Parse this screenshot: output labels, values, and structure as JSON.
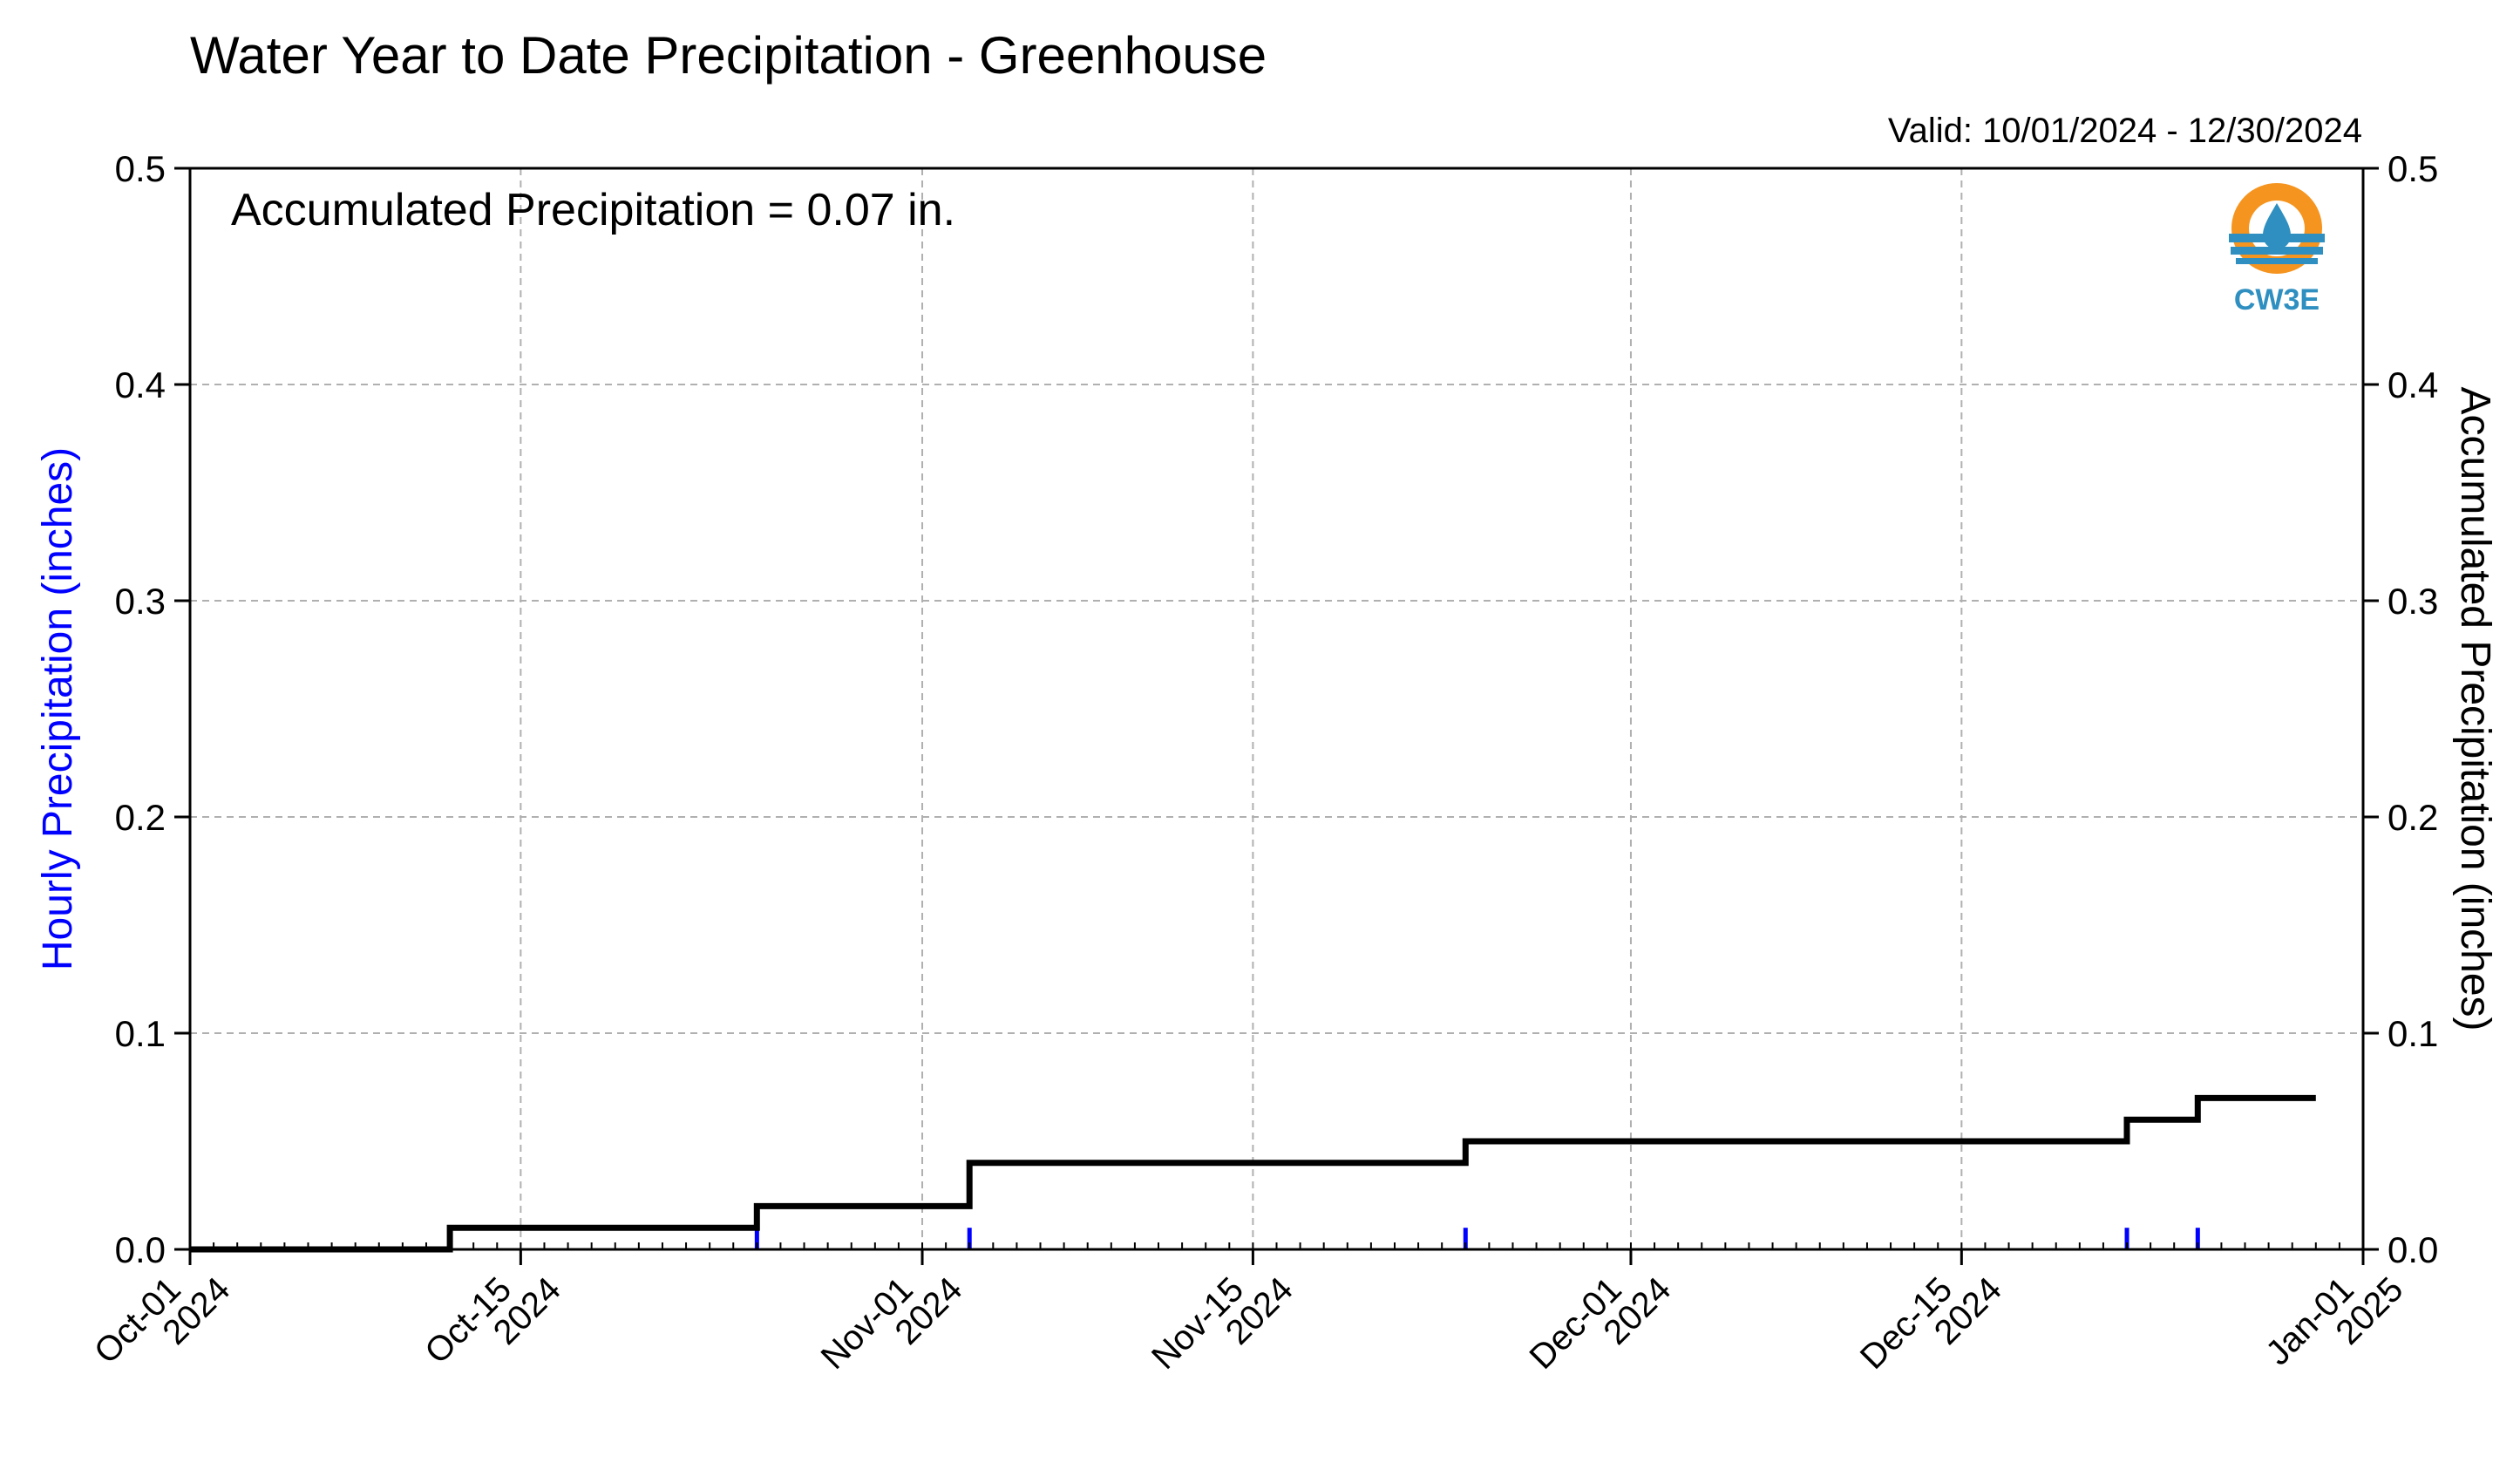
{
  "chart_data": {
    "type": "line",
    "title": "Water Year to Date Precipitation - Greenhouse",
    "valid_text": "Valid: 10/01/2024 - 12/30/2024",
    "annotation": "Accumulated Precipitation = 0.07 in.",
    "ylabel_left": "Hourly Precipitation (inches)",
    "ylabel_right": "Accumulated Precipitation (inches)",
    "ylim": [
      0,
      0.5
    ],
    "yticks": [
      0.0,
      0.1,
      0.2,
      0.3,
      0.4,
      0.5
    ],
    "ytick_labels": [
      "0.0",
      "0.1",
      "0.2",
      "0.3",
      "0.4",
      "0.5"
    ],
    "xlim": [
      "2024-10-01",
      "2025-01-01"
    ],
    "xticks": [
      {
        "date": "2024-10-01",
        "line1": "Oct-01",
        "line2": "2024"
      },
      {
        "date": "2024-10-15",
        "line1": "Oct-15",
        "line2": "2024"
      },
      {
        "date": "2024-11-01",
        "line1": "Nov-01",
        "line2": "2024"
      },
      {
        "date": "2024-11-15",
        "line1": "Nov-15",
        "line2": "2024"
      },
      {
        "date": "2024-12-01",
        "line1": "Dec-01",
        "line2": "2024"
      },
      {
        "date": "2024-12-15",
        "line1": "Dec-15",
        "line2": "2024"
      },
      {
        "date": "2025-01-01",
        "line1": "Jan-01",
        "line2": "2025"
      }
    ],
    "grid": true,
    "series": [
      {
        "name": "",
        "kind": "step",
        "color": "#000000",
        "points": [
          [
            "2024-10-01",
            0.0
          ],
          [
            "2024-10-12",
            0.0
          ],
          [
            "2024-10-12",
            0.01
          ],
          [
            "2024-10-25",
            0.01
          ],
          [
            "2024-10-25",
            0.02
          ],
          [
            "2024-11-03",
            0.02
          ],
          [
            "2024-11-03",
            0.04
          ],
          [
            "2024-11-24",
            0.04
          ],
          [
            "2024-11-24",
            0.05
          ],
          [
            "2024-12-22",
            0.05
          ],
          [
            "2024-12-22",
            0.06
          ],
          [
            "2024-12-25",
            0.06
          ],
          [
            "2024-12-25",
            0.07
          ],
          [
            "2024-12-30",
            0.07
          ]
        ]
      },
      {
        "name": "",
        "kind": "bar",
        "color": "#0000ff",
        "points": [
          [
            "2024-10-25",
            0.01
          ],
          [
            "2024-11-03",
            0.01
          ],
          [
            "2024-11-24",
            0.01
          ],
          [
            "2024-12-22",
            0.01
          ],
          [
            "2024-12-25",
            0.01
          ]
        ]
      }
    ],
    "colors": {
      "left_axis_label": "#0000ff",
      "grid": "#b0b0b0",
      "logo_orange": "#f5941f",
      "logo_blue": "#2e8fc0"
    },
    "logo_text": "CW3E"
  }
}
